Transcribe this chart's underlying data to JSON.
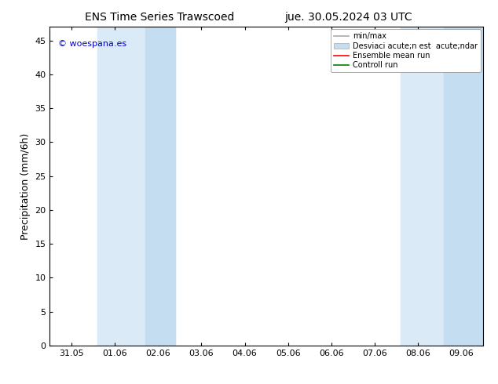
{
  "title_left": "ENS Time Series Trawscoed",
  "title_right": "jue. 30.05.2024 03 UTC",
  "ylabel": "Precipitation (mm/6h)",
  "background_color": "#ffffff",
  "plot_bg_color": "#ffffff",
  "ylim": [
    0,
    47
  ],
  "yticks": [
    0,
    5,
    10,
    15,
    20,
    25,
    30,
    35,
    40,
    45
  ],
  "x_tick_labels": [
    "31.05",
    "01.06",
    "02.06",
    "03.06",
    "04.06",
    "05.06",
    "06.06",
    "07.06",
    "08.06",
    "09.06"
  ],
  "x_tick_positions": [
    0,
    1,
    2,
    3,
    4,
    5,
    6,
    7,
    8,
    9
  ],
  "xlim": [
    -0.5,
    9.5
  ],
  "shaded_regions": [
    {
      "xmin": 0.6,
      "xmax": 2.4,
      "color": "#daeaf7"
    },
    {
      "xmin": 7.6,
      "xmax": 9.5,
      "color": "#daeaf7"
    }
  ],
  "shaded_subregions": [
    {
      "xmin": 1.7,
      "xmax": 2.4,
      "color": "#c5ddf0"
    },
    {
      "xmin": 8.6,
      "xmax": 9.5,
      "color": "#c5ddf0"
    }
  ],
  "legend_label_minmax": "min/max",
  "legend_label_std": "Desviaci acute;n est  acute;ndar",
  "legend_label_ens": "Ensemble mean run",
  "legend_label_ctrl": "Controll run",
  "legend_color_minmax": "#aaaaaa",
  "legend_color_std": "#c5ddf0",
  "legend_color_ens": "#ff0000",
  "legend_color_ctrl": "#008000",
  "watermark": "© woespana.es",
  "watermark_color": "#0000cc",
  "title_fontsize": 10,
  "tick_fontsize": 8,
  "ylabel_fontsize": 9,
  "legend_fontsize": 7
}
